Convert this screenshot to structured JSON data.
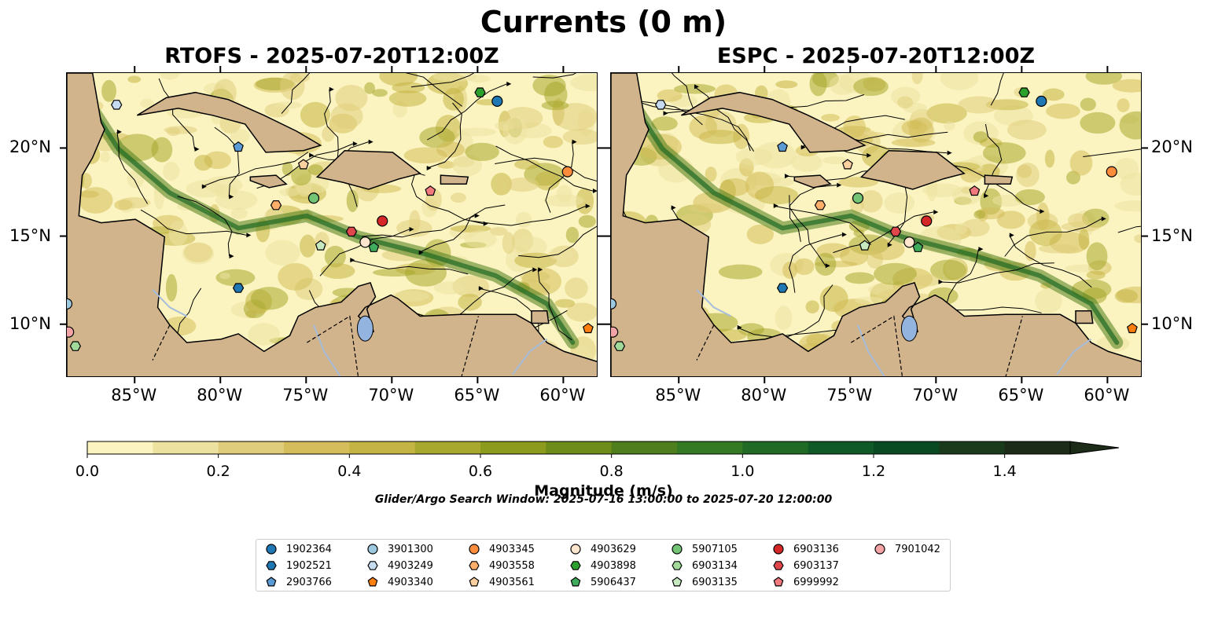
{
  "suptitle": "Currents (0 m)",
  "panels": [
    {
      "title": "RTOFS - 2025-07-20T12:00Z",
      "model": "RTOFS"
    },
    {
      "title": "ESPC - 2025-07-20T12:00Z",
      "model": "ESPC"
    }
  ],
  "colors": {
    "land": "#d2b48c",
    "lake": "#94b4e0",
    "river": "#a6bddb",
    "water_low": "#fbf4c0",
    "water_mid": "#b7b03a",
    "water_high": "#1f6a24"
  },
  "colorbar": {
    "label": "Magnitude (m/s)",
    "ticks": [
      "0.0",
      "0.2",
      "0.4",
      "0.6",
      "0.8",
      "1.0",
      "1.2",
      "1.4"
    ],
    "levels": [
      0.0,
      0.1,
      0.2,
      0.3,
      0.4,
      0.5,
      0.6,
      0.7,
      0.8,
      0.9,
      1.0,
      1.1,
      1.2,
      1.3,
      1.4,
      1.5
    ],
    "colors": [
      "#fbf4c0",
      "#ede1a0",
      "#e0cd7c",
      "#d4bd5a",
      "#c4b443",
      "#a8a72e",
      "#8c9a1e",
      "#6e8c1a",
      "#4f7e1c",
      "#347a22",
      "#1f6a24",
      "#0f5a27",
      "#0a4a23",
      "#1a3a1c",
      "#1c2b18"
    ],
    "extend": "max"
  },
  "search_window": "Glider/Argo Search Window: 2025-07-16 13:00:00 to 2025-07-20 12:00:00",
  "axes": {
    "lon_range": [
      -89,
      -58
    ],
    "lat_range": [
      7,
      24.3
    ],
    "xticks": [
      "85°W",
      "80°W",
      "75°W",
      "70°W",
      "65°W",
      "60°W"
    ],
    "xtick_values": [
      -85,
      -80,
      -75,
      -70,
      -65,
      -60
    ],
    "yticks": [
      "20°N",
      "15°N",
      "10°N"
    ],
    "ytick_values": [
      20,
      15,
      10
    ]
  },
  "legend": [
    {
      "id": "1902364",
      "color": "#1f77b4",
      "marker": "circle"
    },
    {
      "id": "1902521",
      "color": "#1f77b4",
      "marker": "hexagon"
    },
    {
      "id": "2903766",
      "color": "#5b9bd5",
      "marker": "pentagon"
    },
    {
      "id": "3901300",
      "color": "#9ecae1",
      "marker": "circle"
    },
    {
      "id": "4903249",
      "color": "#c6dbef",
      "marker": "hexagon"
    },
    {
      "id": "4903340",
      "color": "#ff7f0e",
      "marker": "pentagon"
    },
    {
      "id": "4903345",
      "color": "#fd8d3c",
      "marker": "circle"
    },
    {
      "id": "4903558",
      "color": "#fdae6b",
      "marker": "hexagon"
    },
    {
      "id": "4903561",
      "color": "#fdd0a2",
      "marker": "pentagon"
    },
    {
      "id": "4903629",
      "color": "#fee6ce",
      "marker": "circle"
    },
    {
      "id": "4903898",
      "color": "#2ca02c",
      "marker": "hexagon"
    },
    {
      "id": "5906437",
      "color": "#41ab5d",
      "marker": "pentagon"
    },
    {
      "id": "5907105",
      "color": "#74c476",
      "marker": "circle"
    },
    {
      "id": "6903134",
      "color": "#a1d99b",
      "marker": "hexagon"
    },
    {
      "id": "6903135",
      "color": "#c7e9c0",
      "marker": "pentagon"
    },
    {
      "id": "6903136",
      "color": "#d62728",
      "marker": "circle"
    },
    {
      "id": "6903137",
      "color": "#e0474c",
      "marker": "hexagon"
    },
    {
      "id": "6999992",
      "color": "#f07a7e",
      "marker": "pentagon"
    },
    {
      "id": "7901042",
      "color": "#f4a3a6",
      "marker": "circle"
    }
  ],
  "chart_data": {
    "type": "scatter",
    "title": "Currents (0 m)",
    "xlabel": "",
    "ylabel": "",
    "xlim": [
      -89,
      -58
    ],
    "ylim": [
      7,
      24.3
    ],
    "grid": false,
    "series": [
      {
        "name": "1902364",
        "x": [
          -63.9
        ],
        "y": [
          22.7
        ]
      },
      {
        "name": "1902521",
        "x": [
          -79.0
        ],
        "y": [
          12.1
        ]
      },
      {
        "name": "2903766",
        "x": [
          -79.0
        ],
        "y": [
          20.1
        ]
      },
      {
        "name": "3901300",
        "x": [
          -89.0
        ],
        "y": [
          11.2
        ]
      },
      {
        "name": "4903249",
        "x": [
          -86.1
        ],
        "y": [
          22.5
        ]
      },
      {
        "name": "4903340",
        "x": [
          -58.6
        ],
        "y": [
          9.8
        ]
      },
      {
        "name": "4903345",
        "x": [
          -59.8
        ],
        "y": [
          18.7
        ]
      },
      {
        "name": "4903558",
        "x": [
          -76.8
        ],
        "y": [
          16.8
        ]
      },
      {
        "name": "4903561",
        "x": [
          -75.2
        ],
        "y": [
          19.1
        ]
      },
      {
        "name": "4903629",
        "x": [
          -71.6
        ],
        "y": [
          14.7
        ]
      },
      {
        "name": "4903898",
        "x": [
          -64.9
        ],
        "y": [
          23.2
        ]
      },
      {
        "name": "5906437",
        "x": [
          -71.1
        ],
        "y": [
          14.4
        ]
      },
      {
        "name": "5907105",
        "x": [
          -74.6
        ],
        "y": [
          17.2
        ]
      },
      {
        "name": "6903134",
        "x": [
          -88.5
        ],
        "y": [
          8.8
        ]
      },
      {
        "name": "6903135",
        "x": [
          -74.2
        ],
        "y": [
          14.5
        ]
      },
      {
        "name": "6903136",
        "x": [
          -70.6
        ],
        "y": [
          15.9
        ]
      },
      {
        "name": "6903137",
        "x": [
          -72.4
        ],
        "y": [
          15.3
        ]
      },
      {
        "name": "6999992",
        "x": [
          -67.8
        ],
        "y": [
          17.6
        ]
      },
      {
        "name": "7901042",
        "x": [
          -88.9
        ],
        "y": [
          9.6
        ]
      }
    ]
  }
}
